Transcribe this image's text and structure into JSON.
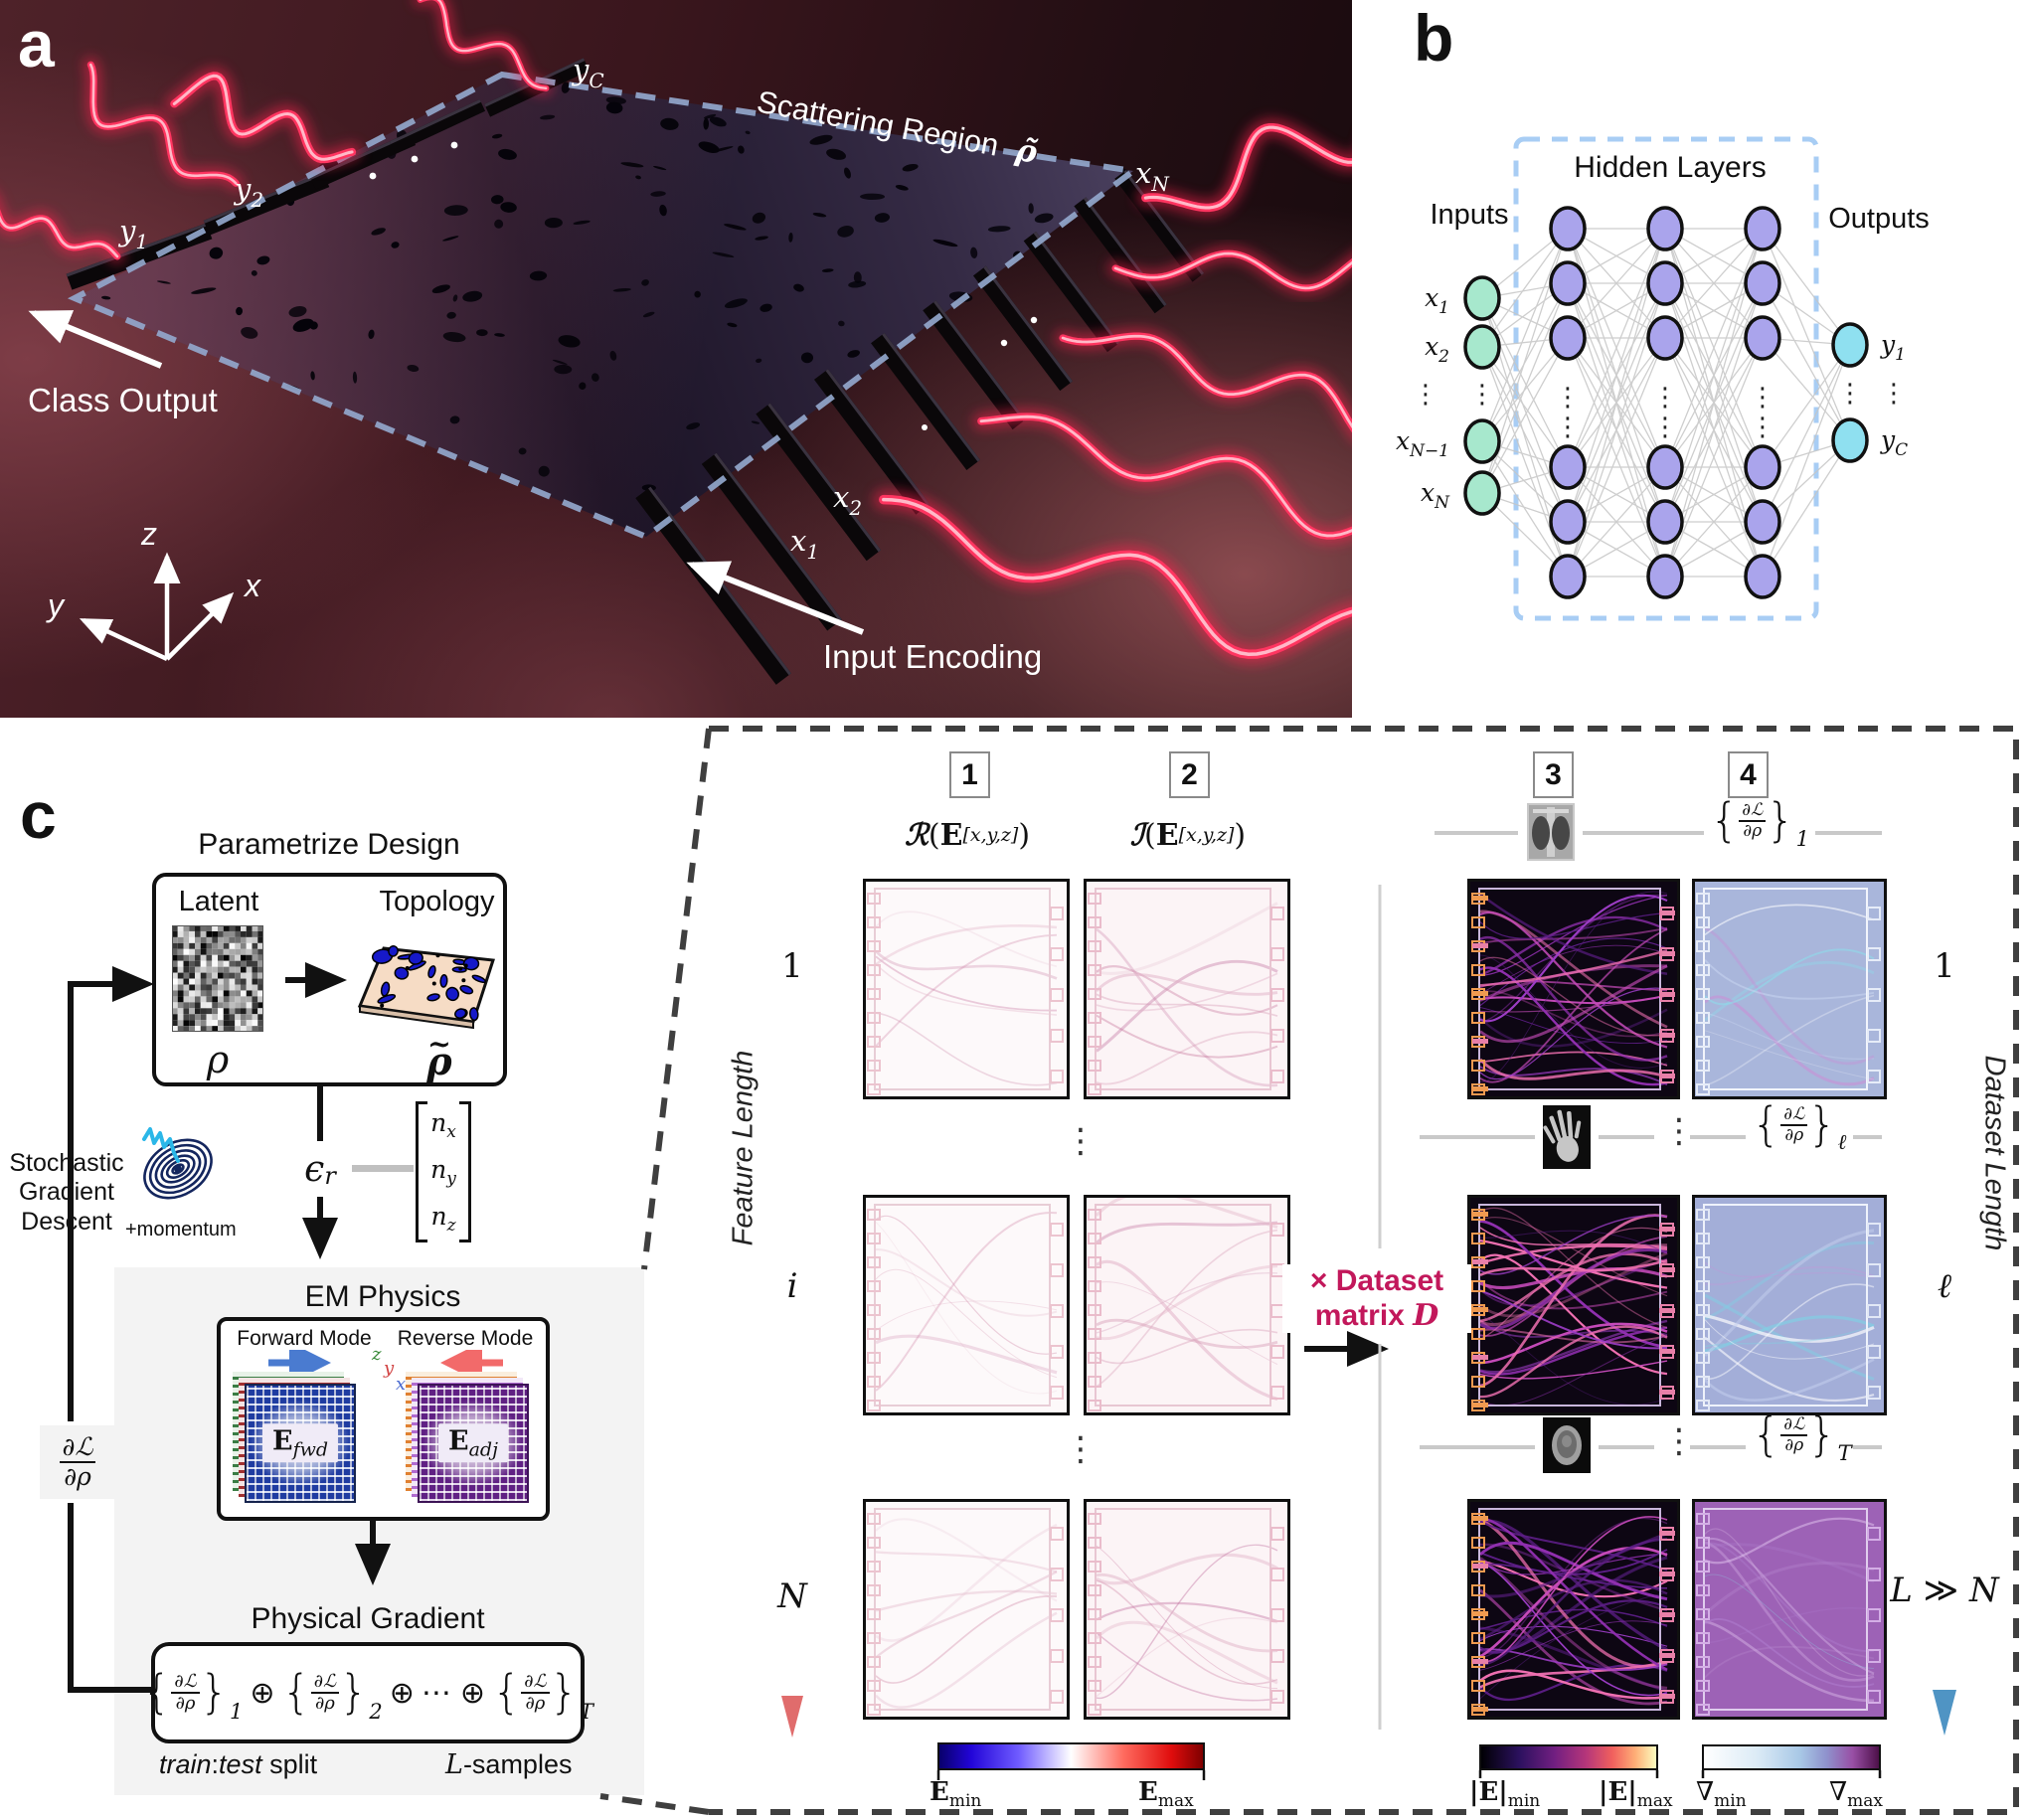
{
  "colors": {
    "wave_pink": "#ff3560",
    "slab_dash": "#93a7cc",
    "panelb_dash": "#a8cdf4",
    "node_input": "#a7e8cd",
    "node_hidden": "#aaa4ec",
    "node_output": "#8fe0f0",
    "feature_axis": "#e06c6c",
    "dataset_axis": "#4f94c4",
    "dataset_matrix_text": "#c2185b",
    "callout_dash": "#3f3f3f"
  },
  "panel_a": {
    "label": "a",
    "region_label": "Scattering Region",
    "region_symbol": "ρ̃",
    "class_output": "Class Output",
    "input_encoding": "Input Encoding",
    "axis_z": "z",
    "axis_x": "x",
    "axis_y": "y",
    "ports": {
      "y1": {
        "base": "y",
        "sub": "1"
      },
      "y2": {
        "base": "y",
        "sub": "2"
      },
      "yC": {
        "base": "y",
        "sub": "C"
      },
      "x1": {
        "base": "x",
        "sub": "1"
      },
      "x2": {
        "base": "x",
        "sub": "2"
      },
      "xN": {
        "base": "x",
        "sub": "N"
      }
    }
  },
  "panel_b": {
    "label": "b",
    "title": "Hidden Layers",
    "inputs": "Inputs",
    "outputs": "Outputs",
    "dots": "⋮",
    "input_labels": [
      {
        "base": "x",
        "sub": "1"
      },
      {
        "base": "x",
        "sub": "2"
      },
      {
        "base": "x",
        "sub": "N−1"
      },
      {
        "base": "x",
        "sub": "N"
      }
    ],
    "output_labels": [
      {
        "base": "y",
        "sub": "1"
      },
      {
        "base": "y",
        "sub": "C"
      }
    ],
    "structure": {
      "inputs": 4,
      "hidden_layers": 3,
      "hidden_visible": 6,
      "outputs": 2
    }
  },
  "panel_c": {
    "label": "c",
    "parametrize": {
      "title": "Parametrize Design",
      "latent": "Latent",
      "topology": "Topology",
      "latent_symbol": "ρ",
      "topology_symbol": "ρ",
      "topology_accent": "~"
    },
    "sgd": {
      "line1": "Stochastic",
      "line2": "Gradient",
      "line3": "Descent",
      "momentum": "+momentum"
    },
    "permittivity": {
      "symbol": "ϵ",
      "sub": "r",
      "matrix": [
        {
          "base": "n",
          "sub": "x"
        },
        {
          "base": "n",
          "sub": "y"
        },
        {
          "base": "n",
          "sub": "z"
        }
      ]
    },
    "em": {
      "title": "EM Physics",
      "forward": "Forward Mode",
      "reverse": "Reverse Mode",
      "efwd": {
        "base": "E",
        "sub": "fwd"
      },
      "eadj": {
        "base": "E",
        "sub": "adj"
      },
      "axis_z": "z",
      "axis_y": "y",
      "axis_x": "x"
    },
    "gradient_symbol": {
      "num": "∂ℒ",
      "den": "∂ρ"
    },
    "physical": {
      "title": "Physical Gradient",
      "oplus": "⊕",
      "cdots": "⋯",
      "terms": [
        {
          "num": "∂ℒ",
          "den": "∂ρ",
          "sub": "1"
        },
        {
          "num": "∂ℒ",
          "den": "∂ρ",
          "sub": "2"
        },
        {
          "num": "∂ℒ",
          "den": "∂ρ",
          "sub": "T"
        }
      ],
      "train": "train",
      "colon": ":",
      "test": "test",
      "split": " split",
      "L": "L",
      "samples": "-samples"
    }
  },
  "flow": {
    "col_numbers": [
      "1",
      "2",
      "3",
      "4"
    ],
    "col1_header": {
      "script": "ℛ",
      "open": "(",
      "E": "E",
      "sub": "[x,y,z]",
      "close": ")"
    },
    "col2_header": {
      "script": "ℐ",
      "open": "(",
      "E": "E",
      "sub": "[x,y,z]",
      "close": ")"
    },
    "grad_labels": [
      {
        "num": "∂ℒ",
        "den": "∂ρ",
        "sub": "1"
      },
      {
        "num": "∂ℒ",
        "den": "∂ρ",
        "sub": "ℓ"
      },
      {
        "num": "∂ℒ",
        "den": "∂ρ",
        "sub": "T"
      }
    ],
    "dots_v": "⋮",
    "dataset_matrix": {
      "line1": "× Dataset",
      "line2": "matrix ",
      "symbol": "D"
    },
    "feature_axis": {
      "start": "1",
      "mid": "i",
      "end": "N",
      "label": "Feature Length"
    },
    "dataset_axis": {
      "start": "1",
      "mid": "ℓ",
      "end_L": "L",
      "end_gg": " ≫ ",
      "end_N": "N",
      "label": "Dataset Length"
    },
    "colorbar_e": {
      "min_base": "E",
      "min_sub": "min",
      "max_base": "E",
      "max_sub": "max"
    },
    "colorbar_absE": {
      "min_base": "|E|",
      "min_sub": "min",
      "max_base": "|E|",
      "max_sub": "max"
    },
    "colorbar_grad": {
      "min_base": "∇",
      "min_sub": "min",
      "max_base": "∇",
      "max_sub": "max"
    }
  }
}
